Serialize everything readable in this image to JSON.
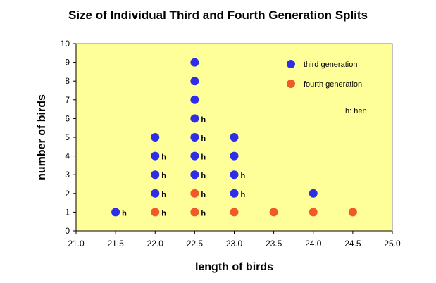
{
  "chart_data": {
    "type": "scatter",
    "title": "Size of Individual Third and Fourth Generation Splits",
    "xlabel": "length of birds",
    "ylabel": "number of birds",
    "xlim": [
      21.0,
      25.0
    ],
    "ylim": [
      0,
      10
    ],
    "xticks": [
      "21.0",
      "21.5",
      "22.0",
      "22.5",
      "23.0",
      "23.5",
      "24.0",
      "24.5",
      "25.0"
    ],
    "yticks": [
      "0",
      "1",
      "2",
      "3",
      "4",
      "5",
      "6",
      "7",
      "8",
      "9",
      "10"
    ],
    "grid": false,
    "legend_position": "top-right",
    "background_color": "#FFFF99",
    "series": [
      {
        "name": "third generation",
        "color": "#2E2EE6",
        "points": [
          {
            "x": 21.5,
            "y": 1,
            "label": "h"
          },
          {
            "x": 22.0,
            "y": 2,
            "label": "h"
          },
          {
            "x": 22.0,
            "y": 3,
            "label": "h"
          },
          {
            "x": 22.0,
            "y": 4,
            "label": "h"
          },
          {
            "x": 22.0,
            "y": 5,
            "label": ""
          },
          {
            "x": 22.5,
            "y": 3,
            "label": "h"
          },
          {
            "x": 22.5,
            "y": 4,
            "label": "h"
          },
          {
            "x": 22.5,
            "y": 5,
            "label": "h"
          },
          {
            "x": 22.5,
            "y": 6,
            "label": "h"
          },
          {
            "x": 22.5,
            "y": 7,
            "label": ""
          },
          {
            "x": 22.5,
            "y": 8,
            "label": ""
          },
          {
            "x": 22.5,
            "y": 9,
            "label": ""
          },
          {
            "x": 23.0,
            "y": 2,
            "label": "h"
          },
          {
            "x": 23.0,
            "y": 3,
            "label": "h"
          },
          {
            "x": 23.0,
            "y": 4,
            "label": ""
          },
          {
            "x": 23.0,
            "y": 5,
            "label": ""
          },
          {
            "x": 24.0,
            "y": 2,
            "label": ""
          }
        ]
      },
      {
        "name": "fourth generation",
        "color": "#F05A28",
        "points": [
          {
            "x": 22.0,
            "y": 1,
            "label": "h"
          },
          {
            "x": 22.5,
            "y": 1,
            "label": "h"
          },
          {
            "x": 22.5,
            "y": 2,
            "label": "h"
          },
          {
            "x": 23.0,
            "y": 1,
            "label": ""
          },
          {
            "x": 23.5,
            "y": 1,
            "label": ""
          },
          {
            "x": 24.0,
            "y": 1,
            "label": ""
          },
          {
            "x": 24.5,
            "y": 1,
            "label": ""
          }
        ]
      }
    ],
    "annotations": [
      "h: hen"
    ]
  }
}
